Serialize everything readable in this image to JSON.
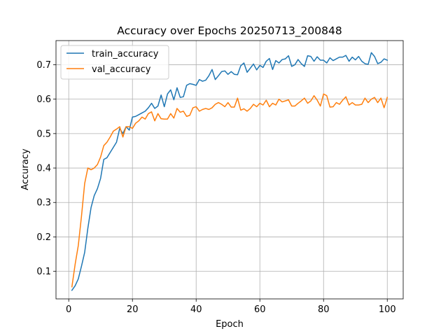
{
  "chart_data": {
    "type": "line",
    "title": "Accuracy over Epochs 20250713_200848",
    "xlabel": "Epoch",
    "ylabel": "Accuracy",
    "xlim": [
      -4,
      105
    ],
    "ylim": [
      0.02,
      0.77
    ],
    "xticks": [
      0,
      20,
      40,
      60,
      80,
      100
    ],
    "yticks": [
      0.1,
      0.2,
      0.3,
      0.4,
      0.5,
      0.6,
      0.7
    ],
    "xtick_labels": [
      "0",
      "20",
      "40",
      "60",
      "80",
      "100"
    ],
    "ytick_labels": [
      "0.1",
      "0.2",
      "0.3",
      "0.4",
      "0.5",
      "0.6",
      "0.7"
    ],
    "grid": true,
    "legend_position": "upper-left",
    "series": [
      {
        "name": "train_accuracy",
        "color": "#1f77b4",
        "x": [
          1,
          2,
          3,
          4,
          5,
          6,
          7,
          8,
          9,
          10,
          11,
          12,
          13,
          14,
          15,
          16,
          17,
          18,
          19,
          20,
          21,
          22,
          23,
          24,
          25,
          26,
          27,
          28,
          29,
          30,
          31,
          32,
          33,
          34,
          35,
          36,
          37,
          38,
          39,
          40,
          41,
          42,
          43,
          44,
          45,
          46,
          47,
          48,
          49,
          50,
          51,
          52,
          53,
          54,
          55,
          56,
          57,
          58,
          59,
          60,
          61,
          62,
          63,
          64,
          65,
          66,
          67,
          68,
          69,
          70,
          71,
          72,
          73,
          74,
          75,
          76,
          77,
          78,
          79,
          80,
          81,
          82,
          83,
          84,
          85,
          86,
          87,
          88,
          89,
          90,
          91,
          92,
          93,
          94,
          95,
          96,
          97,
          98,
          99,
          100
        ],
        "values": [
          0.045,
          0.058,
          0.078,
          0.115,
          0.155,
          0.225,
          0.285,
          0.32,
          0.34,
          0.37,
          0.425,
          0.43,
          0.445,
          0.46,
          0.475,
          0.515,
          0.5,
          0.52,
          0.51,
          0.548,
          0.55,
          0.555,
          0.56,
          0.565,
          0.575,
          0.588,
          0.573,
          0.58,
          0.612,
          0.578,
          0.615,
          0.627,
          0.598,
          0.633,
          0.605,
          0.607,
          0.64,
          0.645,
          0.643,
          0.64,
          0.657,
          0.652,
          0.655,
          0.668,
          0.686,
          0.657,
          0.668,
          0.68,
          0.682,
          0.672,
          0.68,
          0.672,
          0.671,
          0.697,
          0.705,
          0.678,
          0.69,
          0.702,
          0.685,
          0.698,
          0.692,
          0.71,
          0.718,
          0.686,
          0.712,
          0.705,
          0.715,
          0.717,
          0.726,
          0.695,
          0.7,
          0.715,
          0.703,
          0.695,
          0.726,
          0.724,
          0.71,
          0.723,
          0.713,
          0.713,
          0.705,
          0.72,
          0.712,
          0.717,
          0.722,
          0.722,
          0.727,
          0.71,
          0.722,
          0.714,
          0.724,
          0.71,
          0.703,
          0.701,
          0.735,
          0.724,
          0.703,
          0.707,
          0.717,
          0.713
        ]
      },
      {
        "name": "val_accuracy",
        "color": "#ff7f0e",
        "x": [
          1,
          2,
          3,
          4,
          5,
          6,
          7,
          8,
          9,
          10,
          11,
          12,
          13,
          14,
          15,
          16,
          17,
          18,
          19,
          20,
          21,
          22,
          23,
          24,
          25,
          26,
          27,
          28,
          29,
          30,
          31,
          32,
          33,
          34,
          35,
          36,
          37,
          38,
          39,
          40,
          41,
          42,
          43,
          44,
          45,
          46,
          47,
          48,
          49,
          50,
          51,
          52,
          53,
          54,
          55,
          56,
          57,
          58,
          59,
          60,
          61,
          62,
          63,
          64,
          65,
          66,
          67,
          68,
          69,
          70,
          71,
          72,
          73,
          74,
          75,
          76,
          77,
          78,
          79,
          80,
          81,
          82,
          83,
          84,
          85,
          86,
          87,
          88,
          89,
          90,
          91,
          92,
          93,
          94,
          95,
          96,
          97,
          98,
          99,
          100
        ],
        "values": [
          0.055,
          0.12,
          0.175,
          0.26,
          0.355,
          0.4,
          0.395,
          0.4,
          0.41,
          0.432,
          0.465,
          0.475,
          0.49,
          0.507,
          0.513,
          0.52,
          0.49,
          0.52,
          0.52,
          0.515,
          0.53,
          0.537,
          0.548,
          0.542,
          0.558,
          0.563,
          0.537,
          0.558,
          0.543,
          0.542,
          0.542,
          0.558,
          0.545,
          0.573,
          0.562,
          0.565,
          0.55,
          0.553,
          0.575,
          0.578,
          0.565,
          0.57,
          0.573,
          0.57,
          0.575,
          0.585,
          0.59,
          0.585,
          0.578,
          0.59,
          0.577,
          0.577,
          0.603,
          0.568,
          0.572,
          0.565,
          0.573,
          0.585,
          0.578,
          0.588,
          0.583,
          0.597,
          0.578,
          0.588,
          0.583,
          0.6,
          0.592,
          0.595,
          0.598,
          0.58,
          0.58,
          0.588,
          0.595,
          0.603,
          0.588,
          0.595,
          0.61,
          0.597,
          0.58,
          0.615,
          0.61,
          0.577,
          0.578,
          0.59,
          0.585,
          0.597,
          0.607,
          0.583,
          0.59,
          0.583,
          0.583,
          0.585,
          0.603,
          0.59,
          0.6,
          0.605,
          0.59,
          0.603,
          0.575,
          0.605
        ]
      }
    ]
  }
}
